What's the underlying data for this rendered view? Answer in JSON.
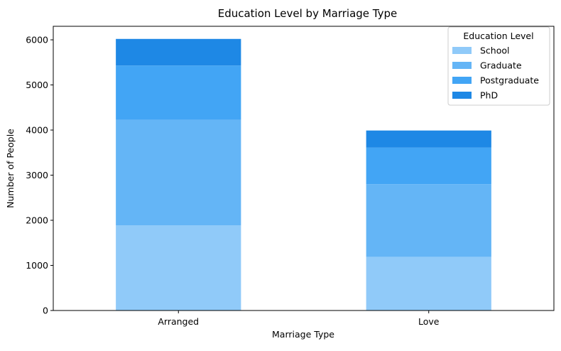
{
  "chart_data": {
    "type": "bar",
    "stacked": true,
    "title": "Education Level by Marriage Type",
    "xlabel": "Marriage Type",
    "ylabel": "Number of People",
    "categories": [
      "Arranged",
      "Love"
    ],
    "ylim": [
      0,
      6300
    ],
    "yticks": [
      0,
      1000,
      2000,
      3000,
      4000,
      5000,
      6000
    ],
    "grid": false,
    "legend": {
      "title": "Education Level",
      "placement": "top-right"
    },
    "series": [
      {
        "name": "School",
        "values": [
          1890,
          1190
        ],
        "color": "#90caf9"
      },
      {
        "name": "Graduate",
        "values": [
          2340,
          1610
        ],
        "color": "#64b5f6"
      },
      {
        "name": "Postgraduate",
        "values": [
          1200,
          810
        ],
        "color": "#42a5f5"
      },
      {
        "name": "PhD",
        "values": [
          590,
          380
        ],
        "color": "#1e88e5"
      }
    ]
  }
}
